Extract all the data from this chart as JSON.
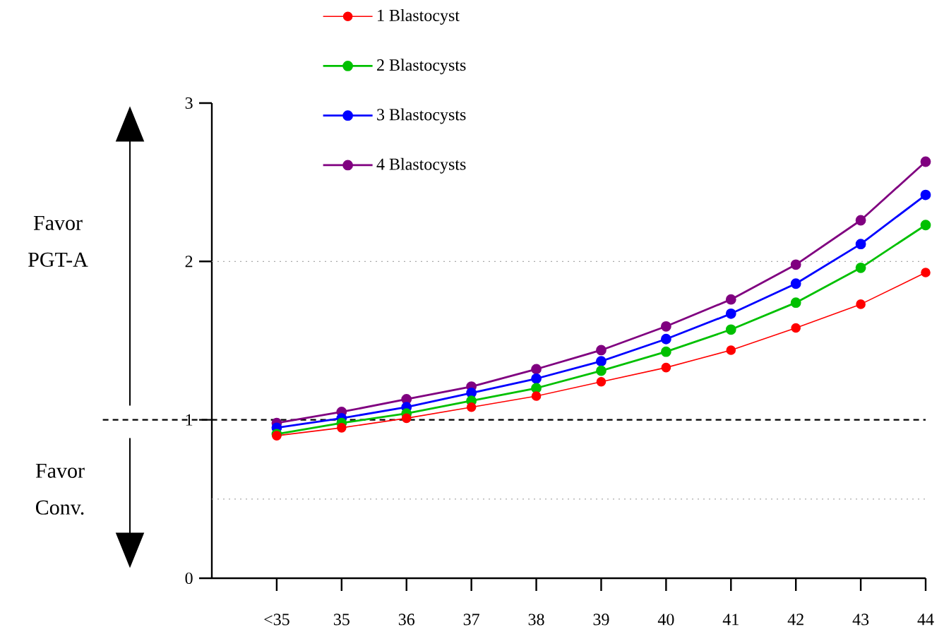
{
  "chart_data": {
    "type": "line",
    "categories": [
      "<35",
      "35",
      "36",
      "37",
      "38",
      "39",
      "40",
      "41",
      "42",
      "43",
      "44"
    ],
    "series": [
      {
        "name": "1 Blastocyst",
        "color": "#ff0000",
        "values": [
          0.9,
          0.95,
          1.01,
          1.08,
          1.15,
          1.24,
          1.33,
          1.44,
          1.58,
          1.73,
          1.93
        ]
      },
      {
        "name": "2 Blastocysts",
        "color": "#00c000",
        "values": [
          0.91,
          0.98,
          1.04,
          1.12,
          1.2,
          1.31,
          1.43,
          1.57,
          1.74,
          1.96,
          2.23
        ]
      },
      {
        "name": "3 Blastocysts",
        "color": "#0000ff",
        "values": [
          0.95,
          1.01,
          1.08,
          1.17,
          1.26,
          1.37,
          1.51,
          1.67,
          1.86,
          2.11,
          2.42
        ]
      },
      {
        "name": "4 Blastocysts",
        "color": "#800080",
        "values": [
          0.98,
          1.05,
          1.13,
          1.21,
          1.32,
          1.44,
          1.59,
          1.76,
          1.98,
          2.26,
          2.63
        ]
      }
    ],
    "ylim": [
      0,
      3
    ],
    "yticks": [
      0,
      1,
      2,
      3
    ],
    "marker": "circle",
    "legend": "top",
    "ref_lines": [
      {
        "axis": "y",
        "value": 0.5,
        "color": "#aaaaaa",
        "line_style": "dotted"
      },
      {
        "axis": "y",
        "value": 1,
        "color": "#000000",
        "line_style": "dashed"
      },
      {
        "axis": "y",
        "value": 2,
        "color": "#aaaaaa",
        "line_style": "dotted"
      }
    ],
    "annotations": [
      "Favor PGT-A",
      "Favor Conv."
    ]
  }
}
